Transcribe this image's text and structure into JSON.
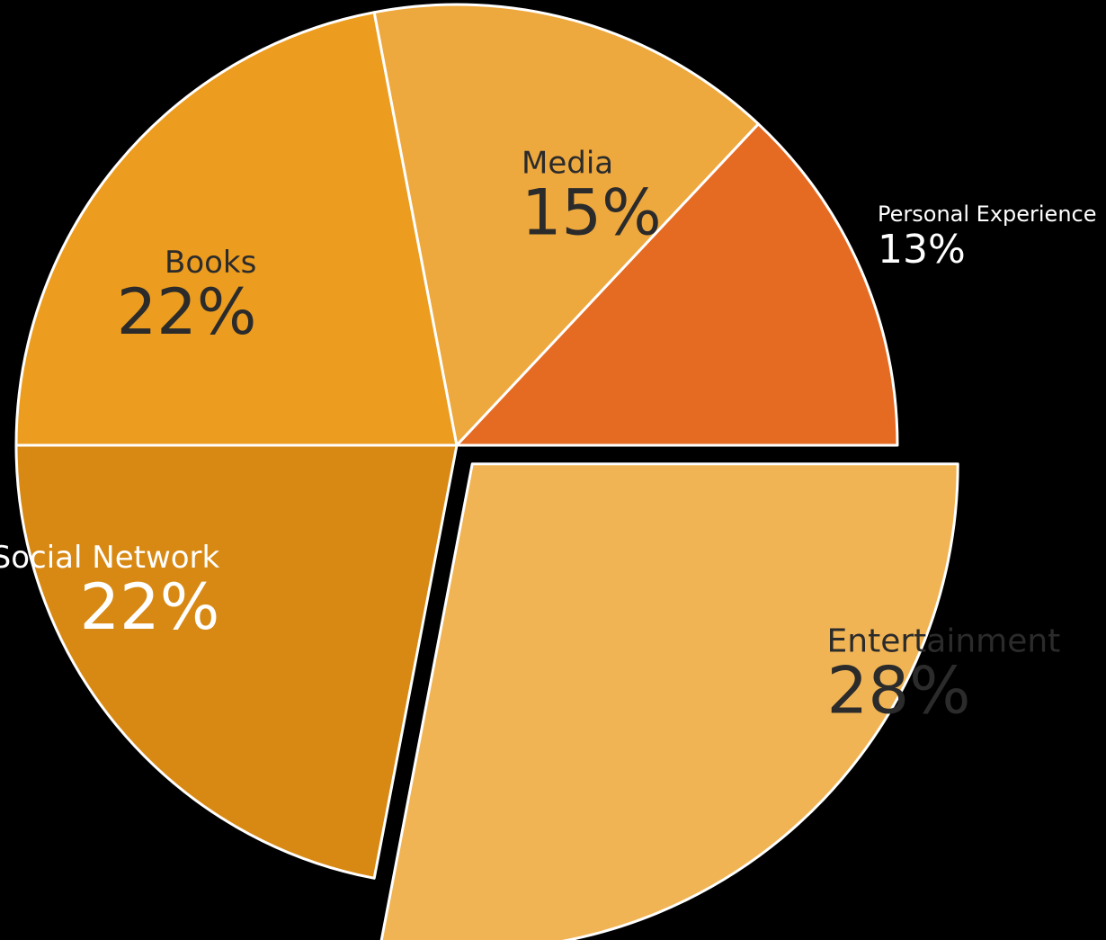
{
  "chart_data": {
    "type": "pie",
    "title": "",
    "slices": [
      {
        "name": "Entertainment",
        "label": "28%",
        "value": 28,
        "color": "#F0B455",
        "exploded": true
      },
      {
        "name": "Social Network",
        "label": "22%",
        "value": 22,
        "color": "#D88914"
      },
      {
        "name": "Books",
        "label": "22%",
        "value": 22,
        "color": "#EC9C1F"
      },
      {
        "name": "Media",
        "label": "15%",
        "value": 15,
        "color": "#EDA83E"
      },
      {
        "name": "Personal Experience",
        "label": "13%",
        "value": 13,
        "color": "#E56A22"
      }
    ],
    "legend": "none",
    "background": "#000000"
  }
}
